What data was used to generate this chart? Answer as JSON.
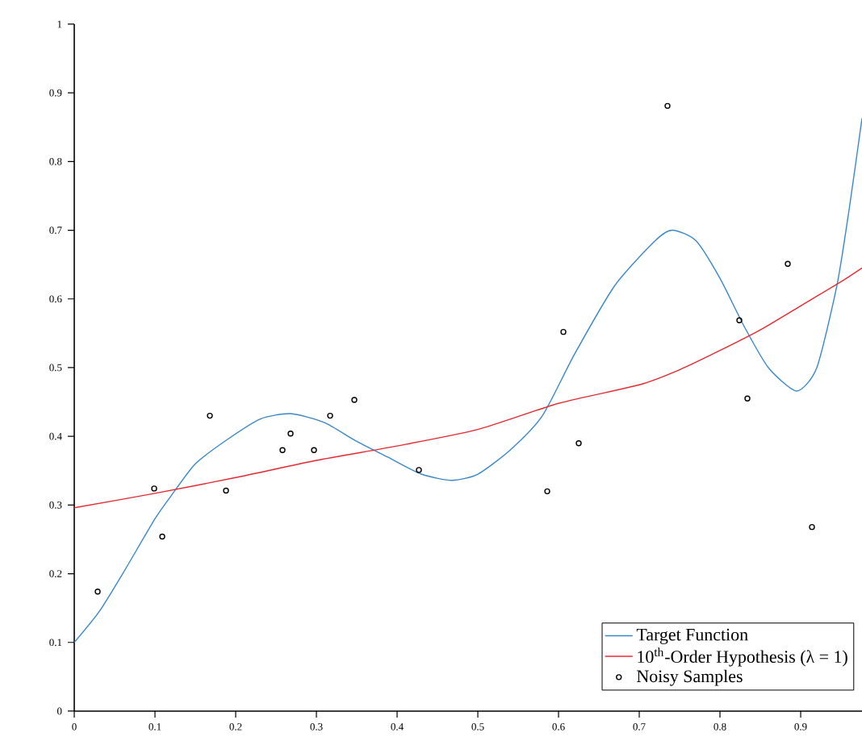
{
  "chart_data": {
    "type": "line",
    "xlim": [
      0,
      0.976
    ],
    "ylim": [
      0,
      1
    ],
    "xticks": [
      0,
      0.1,
      0.2,
      0.3,
      0.4,
      0.5,
      0.6,
      0.7,
      0.8,
      0.9
    ],
    "yticks": [
      0,
      0.1,
      0.2,
      0.3,
      0.4,
      0.5,
      0.6,
      0.7,
      0.8,
      0.9,
      1
    ],
    "legend": "bottom right",
    "series": [
      {
        "name": "Target Function",
        "color": "#3a87c8",
        "x": [
          0,
          0.031,
          0.06,
          0.1,
          0.121,
          0.15,
          0.188,
          0.23,
          0.268,
          0.31,
          0.348,
          0.388,
          0.43,
          0.468,
          0.5,
          0.54,
          0.58,
          0.62,
          0.67,
          0.72,
          0.741,
          0.77,
          0.8,
          0.83,
          0.86,
          0.895,
          0.92,
          0.945,
          0.96,
          0.976
        ],
        "values": [
          0.1,
          0.145,
          0.2,
          0.28,
          0.315,
          0.36,
          0.394,
          0.425,
          0.433,
          0.42,
          0.394,
          0.37,
          0.345,
          0.336,
          0.345,
          0.38,
          0.43,
          0.52,
          0.62,
          0.685,
          0.7,
          0.685,
          0.63,
          0.56,
          0.5,
          0.466,
          0.5,
          0.62,
          0.73,
          0.863
        ]
      },
      {
        "name": "10$^{th}$-Order Hypothesis (λ = 1)",
        "color": "#e8282e",
        "x": [
          0,
          0.1,
          0.2,
          0.3,
          0.4,
          0.5,
          0.6,
          0.7,
          0.75,
          0.8,
          0.85,
          0.9,
          0.95,
          0.976
        ],
        "values": [
          0.296,
          0.317,
          0.34,
          0.365,
          0.386,
          0.41,
          0.448,
          0.475,
          0.497,
          0.525,
          0.555,
          0.59,
          0.625,
          0.645
        ]
      },
      {
        "name": "Noisy Samples",
        "color": "#000000",
        "type": "scatter",
        "marker": "circle",
        "x": [
          0.029,
          0.099,
          0.109,
          0.168,
          0.188,
          0.258,
          0.268,
          0.297,
          0.317,
          0.347,
          0.427,
          0.586,
          0.606,
          0.625,
          0.735,
          0.824,
          0.834,
          0.884,
          0.914
        ],
        "values": [
          0.174,
          0.324,
          0.254,
          0.43,
          0.321,
          0.38,
          0.404,
          0.38,
          0.43,
          0.453,
          0.351,
          0.32,
          0.552,
          0.39,
          0.881,
          0.569,
          0.455,
          0.651,
          0.268
        ]
      }
    ]
  }
}
